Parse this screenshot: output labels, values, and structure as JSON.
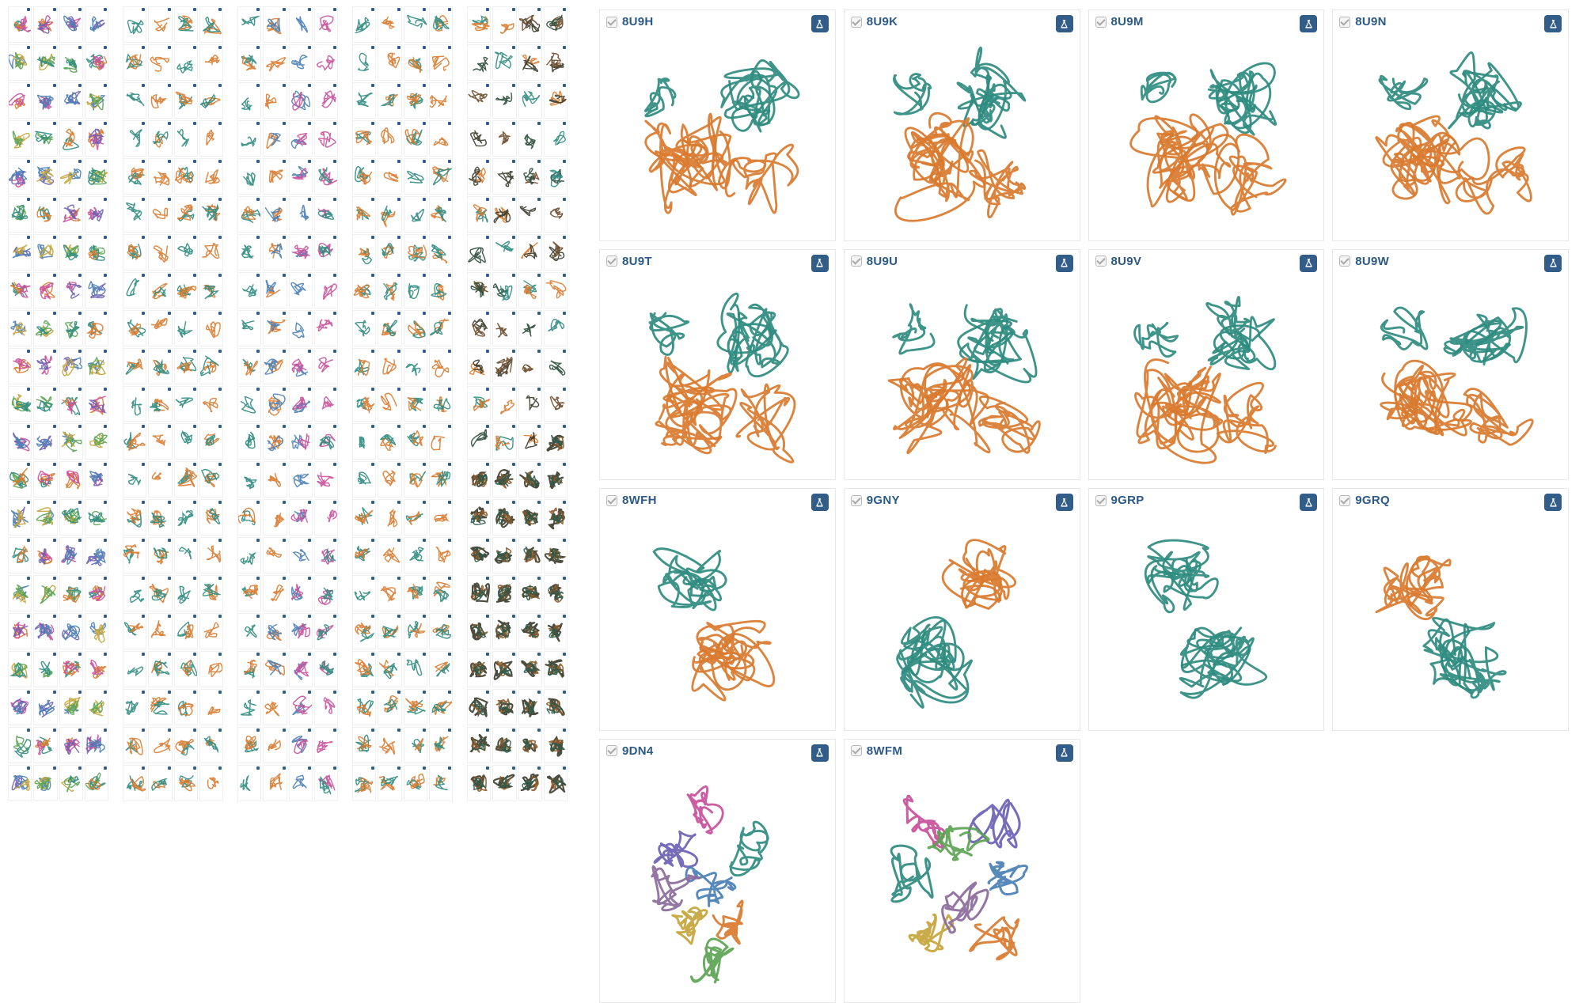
{
  "colors": {
    "link": "#2c5986",
    "badge_bg": "#325d88",
    "badge_fg": "#ffffff",
    "card_border": "#e8e8e8",
    "chain_a": "#2e8b7f",
    "chain_b": "#d97a2e",
    "chain_c": "#c94f9a",
    "chain_d": "#6b5fb3",
    "chain_e": "#4a7fb5",
    "chain_f": "#c4a53a",
    "chain_g": "#5aa352",
    "dark_mix": "#3a3a2a"
  },
  "strips": [
    {
      "cols": 4,
      "rows": 21,
      "palette": "rainbow"
    },
    {
      "cols": 4,
      "rows": 21,
      "palette": "teal_orange"
    },
    {
      "cols": 4,
      "rows": 21,
      "palette": "teal_orange_mix"
    },
    {
      "cols": 4,
      "rows": 21,
      "palette": "teal_orange"
    },
    {
      "cols": 4,
      "rows": 21,
      "palette": "teal_orange_dark"
    }
  ],
  "cards": [
    {
      "id": "8U9H",
      "style": "dimer_to",
      "badge": true
    },
    {
      "id": "8U9K",
      "style": "dimer_to",
      "badge": true
    },
    {
      "id": "8U9M",
      "style": "dimer_to",
      "badge": true
    },
    {
      "id": "8U9N",
      "style": "dimer_to",
      "badge": true
    },
    {
      "id": "8U9T",
      "style": "dimer_to",
      "badge": true
    },
    {
      "id": "8U9U",
      "style": "dimer_to",
      "badge": true
    },
    {
      "id": "8U9V",
      "style": "dimer_to",
      "badge": true
    },
    {
      "id": "8U9W",
      "style": "dimer_to",
      "badge": true
    },
    {
      "id": "8WFH",
      "style": "two_domain_to",
      "badge": true
    },
    {
      "id": "9GNY",
      "style": "two_domain_ot",
      "badge": true
    },
    {
      "id": "9GRP",
      "style": "two_domain_tt",
      "badge": true
    },
    {
      "id": "9GRQ",
      "style": "two_domain_tt2",
      "badge": true
    },
    {
      "id": "9DN4",
      "style": "multi_rainbow",
      "badge": true
    },
    {
      "id": "8WFM",
      "style": "multi_rainbow2",
      "badge": true
    },
    {
      "empty": true
    },
    {
      "empty": true
    }
  ]
}
